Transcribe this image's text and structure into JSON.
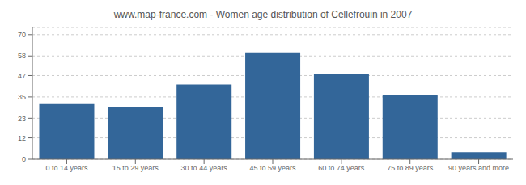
{
  "chart_data": {
    "type": "bar",
    "title": "www.map-france.com - Women age distribution of Cellefrouin in 2007",
    "categories": [
      "0 to 14 years",
      "15 to 29 years",
      "30 to 44 years",
      "45 to 59 years",
      "60 to 74 years",
      "75 to 89 years",
      "90 years and more"
    ],
    "values": [
      31,
      29,
      42,
      60,
      48,
      36,
      4
    ],
    "color": "#336699",
    "ylim": [
      0,
      74
    ],
    "yticks": [
      0,
      12,
      23,
      35,
      47,
      58,
      70
    ],
    "grid": true
  }
}
